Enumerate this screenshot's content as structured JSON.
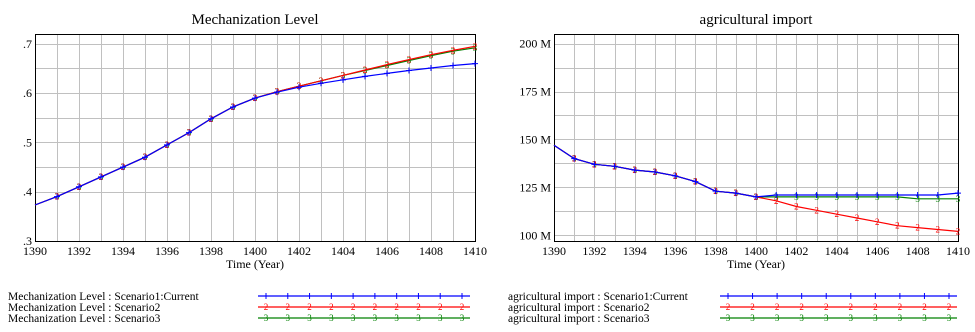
{
  "chart_data": [
    {
      "type": "line",
      "title": "Mechanization Level",
      "xlabel": "Time (Year)",
      "ylabel": "",
      "xlim": [
        1390,
        1410
      ],
      "ylim": [
        0.3,
        0.72
      ],
      "x_ticks": [
        1390,
        1392,
        1394,
        1396,
        1398,
        1400,
        1402,
        1404,
        1406,
        1408,
        1410
      ],
      "x_tick_labels": [
        "1390",
        "1392",
        "1394",
        "1396",
        "1398",
        "1400",
        "1402",
        "1404",
        "1406",
        "1408",
        "1410"
      ],
      "y_ticks": [
        0.3,
        0.4,
        0.5,
        0.6,
        0.7
      ],
      "y_tick_labels": [
        ".3",
        ".4",
        ".5",
        ".6",
        ".7"
      ],
      "grid": true,
      "legend_position": "bottom",
      "x": [
        1390,
        1391,
        1392,
        1393,
        1394,
        1395,
        1396,
        1397,
        1398,
        1399,
        1400,
        1401,
        1402,
        1403,
        1404,
        1405,
        1406,
        1407,
        1408,
        1409,
        1410
      ],
      "series": [
        {
          "name": "Mechanization Level : Scenario1:Current",
          "marker": "+",
          "color": "#0000ff",
          "values": [
            0.373,
            0.39,
            0.41,
            0.43,
            0.45,
            0.47,
            0.495,
            0.52,
            0.548,
            0.572,
            0.59,
            0.602,
            0.612,
            0.62,
            0.627,
            0.634,
            0.64,
            0.646,
            0.651,
            0.656,
            0.66
          ]
        },
        {
          "name": "Mechanization Level : Scenario2",
          "marker": "2",
          "color": "#ff0000",
          "values": [
            0.373,
            0.39,
            0.41,
            0.43,
            0.45,
            0.47,
            0.495,
            0.52,
            0.548,
            0.572,
            0.59,
            0.603,
            0.614,
            0.625,
            0.636,
            0.647,
            0.658,
            0.668,
            0.678,
            0.687,
            0.695
          ]
        },
        {
          "name": "Mechanization Level : Scenario3",
          "marker": "3",
          "color": "#008000",
          "values": [
            0.373,
            0.39,
            0.41,
            0.43,
            0.45,
            0.47,
            0.495,
            0.52,
            0.548,
            0.572,
            0.59,
            0.603,
            0.614,
            0.625,
            0.636,
            0.646,
            0.656,
            0.666,
            0.676,
            0.685,
            0.692
          ]
        }
      ]
    },
    {
      "type": "line",
      "title": "agricultural import",
      "xlabel": "Time (Year)",
      "ylabel": "",
      "xlim": [
        1390,
        1410
      ],
      "ylim": [
        97,
        205
      ],
      "y_unit": "M",
      "x_ticks": [
        1390,
        1392,
        1394,
        1396,
        1398,
        1400,
        1402,
        1404,
        1406,
        1408,
        1410
      ],
      "x_tick_labels": [
        "1390",
        "1392",
        "1394",
        "1396",
        "1398",
        "1400",
        "1402",
        "1404",
        "1406",
        "1408",
        "1410"
      ],
      "y_ticks": [
        100,
        125,
        150,
        175,
        200
      ],
      "y_tick_labels": [
        "100 M",
        "125 M",
        "150 M",
        "175 M",
        "200 M"
      ],
      "grid": true,
      "legend_position": "bottom",
      "x": [
        1390,
        1391,
        1392,
        1393,
        1394,
        1395,
        1396,
        1397,
        1398,
        1399,
        1400,
        1401,
        1402,
        1403,
        1404,
        1405,
        1406,
        1407,
        1408,
        1409,
        1410
      ],
      "series": [
        {
          "name": "agricultural import : Scenario1:Current",
          "marker": "+",
          "color": "#0000ff",
          "values": [
            147,
            140,
            137,
            136,
            134,
            133,
            131,
            128,
            123,
            122,
            120,
            121,
            121,
            121,
            121,
            121,
            121,
            121,
            121,
            121,
            122
          ]
        },
        {
          "name": "agricultural import : Scenario2",
          "marker": "2",
          "color": "#ff0000",
          "values": [
            147,
            140,
            137,
            136,
            134,
            133,
            131,
            128,
            123,
            122,
            120,
            118,
            115,
            113,
            111,
            109,
            107,
            105,
            104,
            103,
            102
          ]
        },
        {
          "name": "agricultural import : Scenario3",
          "marker": "3",
          "color": "#008000",
          "values": [
            147,
            140,
            137,
            136,
            134,
            133,
            131,
            128,
            123,
            122,
            120,
            120,
            120,
            120,
            120,
            120,
            120,
            120,
            119,
            119,
            119
          ]
        }
      ]
    }
  ]
}
